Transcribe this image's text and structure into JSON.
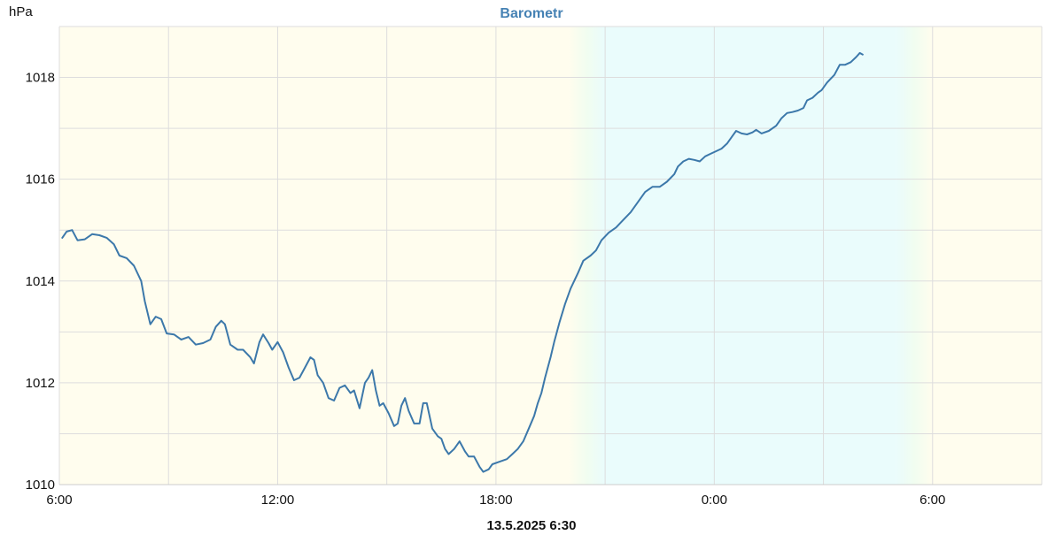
{
  "chart_data": {
    "type": "line",
    "title": "Barometr",
    "unit_label": "hPa",
    "footer": "13.5.2025 6:30",
    "xlim": [
      0,
      27
    ],
    "ylim": [
      1010,
      1019
    ],
    "grid": true,
    "y_ticks": [
      1010,
      1012,
      1014,
      1016,
      1018
    ],
    "y_minor_ticks": [
      1011,
      1013,
      1015,
      1017,
      1019
    ],
    "x_ticks": [
      {
        "x": 0,
        "label": "6:00"
      },
      {
        "x": 6,
        "label": "12:00"
      },
      {
        "x": 12,
        "label": "18:00"
      },
      {
        "x": 18,
        "label": "0:00"
      },
      {
        "x": 24,
        "label": "6:00"
      }
    ],
    "x_minor_ticks": [
      3,
      9,
      15,
      21
    ],
    "background_bands": {
      "day_color": "#fffdee",
      "night_color": "#eafcfc",
      "twilight_color": "#f1fdf0",
      "sunset": [
        14.0,
        15.0
      ],
      "sunrise": [
        23.0,
        24.0
      ]
    },
    "colors": {
      "title": "#4682b4",
      "line": "#3c78aa",
      "grid": "#dddddd"
    },
    "series": [
      {
        "values": [
          [
            0.08,
            1014.85
          ],
          [
            0.2,
            1014.97
          ],
          [
            0.35,
            1015.0
          ],
          [
            0.5,
            1014.8
          ],
          [
            0.7,
            1014.82
          ],
          [
            0.9,
            1014.92
          ],
          [
            1.1,
            1014.9
          ],
          [
            1.3,
            1014.85
          ],
          [
            1.5,
            1014.72
          ],
          [
            1.65,
            1014.5
          ],
          [
            1.85,
            1014.45
          ],
          [
            2.05,
            1014.3
          ],
          [
            2.25,
            1014.0
          ],
          [
            2.35,
            1013.6
          ],
          [
            2.5,
            1013.15
          ],
          [
            2.65,
            1013.3
          ],
          [
            2.8,
            1013.25
          ],
          [
            2.95,
            1012.97
          ],
          [
            3.15,
            1012.95
          ],
          [
            3.35,
            1012.85
          ],
          [
            3.55,
            1012.9
          ],
          [
            3.75,
            1012.75
          ],
          [
            3.95,
            1012.78
          ],
          [
            4.15,
            1012.85
          ],
          [
            4.3,
            1013.1
          ],
          [
            4.45,
            1013.22
          ],
          [
            4.55,
            1013.15
          ],
          [
            4.7,
            1012.75
          ],
          [
            4.9,
            1012.65
          ],
          [
            5.05,
            1012.65
          ],
          [
            5.25,
            1012.5
          ],
          [
            5.35,
            1012.38
          ],
          [
            5.5,
            1012.8
          ],
          [
            5.6,
            1012.95
          ],
          [
            5.75,
            1012.78
          ],
          [
            5.85,
            1012.65
          ],
          [
            6.0,
            1012.8
          ],
          [
            6.15,
            1012.6
          ],
          [
            6.3,
            1012.3
          ],
          [
            6.45,
            1012.05
          ],
          [
            6.6,
            1012.1
          ],
          [
            6.75,
            1012.3
          ],
          [
            6.9,
            1012.5
          ],
          [
            7.0,
            1012.45
          ],
          [
            7.1,
            1012.15
          ],
          [
            7.25,
            1012.0
          ],
          [
            7.4,
            1011.7
          ],
          [
            7.55,
            1011.65
          ],
          [
            7.7,
            1011.9
          ],
          [
            7.85,
            1011.95
          ],
          [
            8.0,
            1011.8
          ],
          [
            8.1,
            1011.85
          ],
          [
            8.25,
            1011.5
          ],
          [
            8.4,
            1012.0
          ],
          [
            8.5,
            1012.1
          ],
          [
            8.6,
            1012.25
          ],
          [
            8.7,
            1011.85
          ],
          [
            8.8,
            1011.55
          ],
          [
            8.9,
            1011.6
          ],
          [
            9.05,
            1011.4
          ],
          [
            9.2,
            1011.15
          ],
          [
            9.3,
            1011.2
          ],
          [
            9.4,
            1011.55
          ],
          [
            9.5,
            1011.7
          ],
          [
            9.6,
            1011.45
          ],
          [
            9.75,
            1011.2
          ],
          [
            9.9,
            1011.2
          ],
          [
            10.0,
            1011.6
          ],
          [
            10.1,
            1011.6
          ],
          [
            10.25,
            1011.1
          ],
          [
            10.4,
            1010.95
          ],
          [
            10.5,
            1010.9
          ],
          [
            10.6,
            1010.7
          ],
          [
            10.7,
            1010.6
          ],
          [
            10.85,
            1010.7
          ],
          [
            11.0,
            1010.85
          ],
          [
            11.15,
            1010.65
          ],
          [
            11.25,
            1010.55
          ],
          [
            11.4,
            1010.55
          ],
          [
            11.55,
            1010.35
          ],
          [
            11.65,
            1010.25
          ],
          [
            11.8,
            1010.3
          ],
          [
            11.9,
            1010.4
          ],
          [
            12.1,
            1010.45
          ],
          [
            12.3,
            1010.5
          ],
          [
            12.45,
            1010.6
          ],
          [
            12.6,
            1010.7
          ],
          [
            12.75,
            1010.85
          ],
          [
            12.9,
            1011.1
          ],
          [
            13.05,
            1011.35
          ],
          [
            13.15,
            1011.6
          ],
          [
            13.25,
            1011.8
          ],
          [
            13.35,
            1012.1
          ],
          [
            13.5,
            1012.5
          ],
          [
            13.6,
            1012.8
          ],
          [
            13.75,
            1013.2
          ],
          [
            13.9,
            1013.55
          ],
          [
            14.05,
            1013.85
          ],
          [
            14.25,
            1014.15
          ],
          [
            14.4,
            1014.4
          ],
          [
            14.6,
            1014.5
          ],
          [
            14.75,
            1014.6
          ],
          [
            14.9,
            1014.8
          ],
          [
            15.1,
            1014.95
          ],
          [
            15.3,
            1015.05
          ],
          [
            15.5,
            1015.2
          ],
          [
            15.7,
            1015.35
          ],
          [
            15.9,
            1015.55
          ],
          [
            16.1,
            1015.75
          ],
          [
            16.3,
            1015.85
          ],
          [
            16.5,
            1015.85
          ],
          [
            16.7,
            1015.95
          ],
          [
            16.9,
            1016.1
          ],
          [
            17.0,
            1016.25
          ],
          [
            17.15,
            1016.35
          ],
          [
            17.3,
            1016.4
          ],
          [
            17.45,
            1016.38
          ],
          [
            17.6,
            1016.35
          ],
          [
            17.75,
            1016.45
          ],
          [
            17.9,
            1016.5
          ],
          [
            18.05,
            1016.55
          ],
          [
            18.2,
            1016.6
          ],
          [
            18.35,
            1016.7
          ],
          [
            18.5,
            1016.85
          ],
          [
            18.6,
            1016.95
          ],
          [
            18.75,
            1016.9
          ],
          [
            18.9,
            1016.88
          ],
          [
            19.05,
            1016.92
          ],
          [
            19.15,
            1016.97
          ],
          [
            19.3,
            1016.9
          ],
          [
            19.5,
            1016.95
          ],
          [
            19.7,
            1017.05
          ],
          [
            19.85,
            1017.2
          ],
          [
            20.0,
            1017.3
          ],
          [
            20.15,
            1017.32
          ],
          [
            20.3,
            1017.35
          ],
          [
            20.45,
            1017.4
          ],
          [
            20.55,
            1017.55
          ],
          [
            20.7,
            1017.6
          ],
          [
            20.85,
            1017.7
          ],
          [
            20.95,
            1017.75
          ],
          [
            21.1,
            1017.9
          ],
          [
            21.3,
            1018.05
          ],
          [
            21.45,
            1018.25
          ],
          [
            21.6,
            1018.25
          ],
          [
            21.75,
            1018.3
          ],
          [
            21.9,
            1018.4
          ],
          [
            22.0,
            1018.48
          ],
          [
            22.08,
            1018.45
          ]
        ]
      }
    ]
  }
}
